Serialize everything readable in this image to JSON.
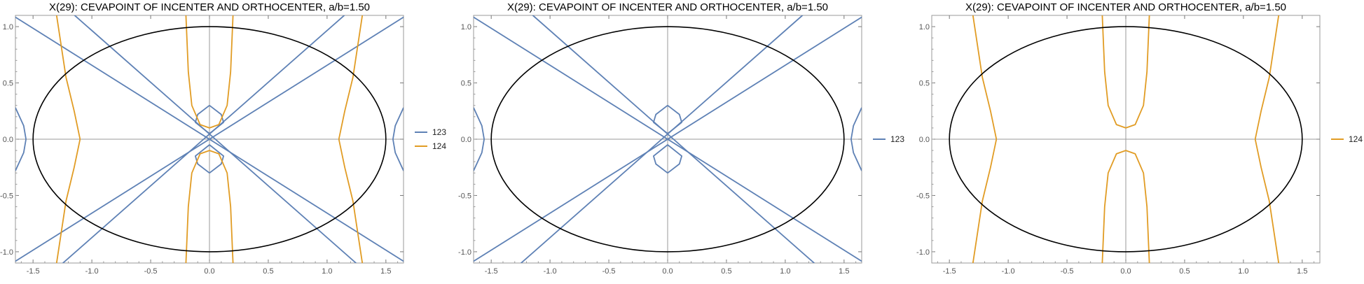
{
  "chart_data": [
    {
      "type": "line",
      "title": "X(29): CEVAPOINT OF INCENTER AND ORTHOCENTER, a/b=1.50",
      "xlim": [
        -1.65,
        1.65
      ],
      "ylim": [
        -1.1,
        1.1
      ],
      "xticks": [
        "-1.5",
        "-1.0",
        "-0.5",
        "0.0",
        "0.5",
        "1.0",
        "1.5"
      ],
      "yticks": [
        "-1.0",
        "-0.5",
        "0.0",
        "0.5",
        "1.0"
      ],
      "legend": {
        "placement": "right",
        "entries": [
          {
            "name": "123",
            "color": "#5E81B5"
          },
          {
            "name": "124",
            "color": "#E19C24"
          }
        ]
      },
      "series": [
        {
          "name": "123",
          "color": "#5E81B5",
          "curves": [
            {
              "x": [
                -1.75,
                1.75
              ],
              "y": [
                -1.15,
                1.15
              ]
            },
            {
              "x": [
                -1.75,
                1.75
              ],
              "y": [
                1.15,
                -1.15
              ]
            },
            {
              "x": [
                -1.3,
                1.2
              ],
              "y": [
                -1.15,
                1.15
              ]
            },
            {
              "x": [
                -1.2,
                1.3
              ],
              "y": [
                1.15,
                -1.15
              ]
            },
            {
              "x": [
                -1.65,
                -1.58,
                -1.56,
                -1.58,
                -1.65
              ],
              "y": [
                0.28,
                0.12,
                0.0,
                -0.12,
                -0.28
              ]
            },
            {
              "x": [
                1.65,
                1.58,
                1.56,
                1.58,
                1.65
              ],
              "y": [
                0.28,
                0.12,
                0.0,
                -0.12,
                -0.28
              ]
            },
            {
              "x": [
                0.0,
                0.1,
                0.12,
                0.0,
                -0.12,
                -0.1,
                0.0
              ],
              "y": [
                0.3,
                0.22,
                0.15,
                0.05,
                0.15,
                0.22,
                0.3
              ]
            },
            {
              "x": [
                0.0,
                0.1,
                0.12,
                0.0,
                -0.12,
                -0.1,
                0.0
              ],
              "y": [
                -0.3,
                -0.22,
                -0.15,
                -0.05,
                -0.15,
                -0.22,
                -0.3
              ]
            }
          ]
        },
        {
          "name": "124",
          "color": "#E19C24",
          "curves": [
            {
              "x": [
                -1.3,
                -1.22,
                -1.15,
                -1.1,
                -1.15,
                -1.22,
                -1.3
              ],
              "y": [
                1.1,
                0.55,
                0.25,
                0.0,
                -0.25,
                -0.55,
                -1.1
              ]
            },
            {
              "x": [
                1.3,
                1.22,
                1.15,
                1.1,
                1.15,
                1.22,
                1.3
              ],
              "y": [
                1.1,
                0.55,
                0.25,
                0.0,
                -0.25,
                -0.55,
                -1.1
              ]
            },
            {
              "x": [
                -0.2,
                -0.18,
                -0.15,
                -0.08,
                0.0,
                0.08,
                0.15,
                0.18,
                0.2
              ],
              "y": [
                1.1,
                0.6,
                0.3,
                0.13,
                0.1,
                0.13,
                0.3,
                0.6,
                1.1
              ]
            },
            {
              "x": [
                -0.2,
                -0.18,
                -0.15,
                -0.08,
                0.0,
                0.08,
                0.15,
                0.18,
                0.2
              ],
              "y": [
                -1.1,
                -0.6,
                -0.3,
                -0.13,
                -0.1,
                -0.13,
                -0.3,
                -0.6,
                -1.1
              ]
            }
          ]
        }
      ],
      "ellipse": {
        "cx": 0,
        "cy": 0,
        "rx": 1.5,
        "ry": 1.0,
        "color": "#000000"
      }
    },
    {
      "type": "line",
      "title": "X(29): CEVAPOINT OF INCENTER AND ORTHOCENTER, a/b=1.50",
      "xlim": [
        -1.65,
        1.65
      ],
      "ylim": [
        -1.1,
        1.1
      ],
      "xticks": [
        "-1.5",
        "-1.0",
        "-0.5",
        "0.0",
        "0.5",
        "1.0",
        "1.5"
      ],
      "yticks": [
        "-1.0",
        "-0.5",
        "0.0",
        "0.5",
        "1.0"
      ],
      "legend": {
        "placement": "right",
        "entries": [
          {
            "name": "123",
            "color": "#5E81B5"
          }
        ]
      },
      "series": [
        {
          "name": "123",
          "color": "#5E81B5",
          "curves": [
            {
              "x": [
                -1.75,
                1.75
              ],
              "y": [
                -1.15,
                1.15
              ]
            },
            {
              "x": [
                -1.75,
                1.75
              ],
              "y": [
                1.15,
                -1.15
              ]
            },
            {
              "x": [
                -1.3,
                1.2
              ],
              "y": [
                -1.15,
                1.15
              ]
            },
            {
              "x": [
                -1.2,
                1.3
              ],
              "y": [
                1.15,
                -1.15
              ]
            },
            {
              "x": [
                -1.65,
                -1.58,
                -1.56,
                -1.58,
                -1.65
              ],
              "y": [
                0.28,
                0.12,
                0.0,
                -0.12,
                -0.28
              ]
            },
            {
              "x": [
                1.65,
                1.58,
                1.56,
                1.58,
                1.65
              ],
              "y": [
                0.28,
                0.12,
                0.0,
                -0.12,
                -0.28
              ]
            },
            {
              "x": [
                0.0,
                0.1,
                0.12,
                0.0,
                -0.12,
                -0.1,
                0.0
              ],
              "y": [
                0.3,
                0.22,
                0.15,
                0.05,
                0.15,
                0.22,
                0.3
              ]
            },
            {
              "x": [
                0.0,
                0.1,
                0.12,
                0.0,
                -0.12,
                -0.1,
                0.0
              ],
              "y": [
                -0.3,
                -0.22,
                -0.15,
                -0.05,
                -0.15,
                -0.22,
                -0.3
              ]
            }
          ]
        }
      ],
      "ellipse": {
        "cx": 0,
        "cy": 0,
        "rx": 1.5,
        "ry": 1.0,
        "color": "#000000"
      }
    },
    {
      "type": "line",
      "title": "X(29): CEVAPOINT OF INCENTER AND ORTHOCENTER, a/b=1.50",
      "xlim": [
        -1.65,
        1.65
      ],
      "ylim": [
        -1.1,
        1.1
      ],
      "xticks": [
        "-1.5",
        "-1.0",
        "-0.5",
        "0.0",
        "0.5",
        "1.0",
        "1.5"
      ],
      "yticks": [
        "-1.0",
        "-0.5",
        "0.0",
        "0.5",
        "1.0"
      ],
      "legend": {
        "placement": "right",
        "entries": [
          {
            "name": "124",
            "color": "#E19C24"
          }
        ]
      },
      "series": [
        {
          "name": "124",
          "color": "#E19C24",
          "curves": [
            {
              "x": [
                -1.3,
                -1.22,
                -1.15,
                -1.1,
                -1.15,
                -1.22,
                -1.3
              ],
              "y": [
                1.1,
                0.55,
                0.25,
                0.0,
                -0.25,
                -0.55,
                -1.1
              ]
            },
            {
              "x": [
                1.3,
                1.22,
                1.15,
                1.1,
                1.15,
                1.22,
                1.3
              ],
              "y": [
                1.1,
                0.55,
                0.25,
                0.0,
                -0.25,
                -0.55,
                -1.1
              ]
            },
            {
              "x": [
                -0.2,
                -0.18,
                -0.15,
                -0.08,
                0.0,
                0.08,
                0.15,
                0.18,
                0.2
              ],
              "y": [
                1.1,
                0.6,
                0.3,
                0.13,
                0.1,
                0.13,
                0.3,
                0.6,
                1.1
              ]
            },
            {
              "x": [
                -0.2,
                -0.18,
                -0.15,
                -0.08,
                0.0,
                0.08,
                0.15,
                0.18,
                0.2
              ],
              "y": [
                -1.1,
                -0.6,
                -0.3,
                -0.13,
                -0.1,
                -0.13,
                -0.3,
                -0.6,
                -1.1
              ]
            }
          ]
        }
      ],
      "ellipse": {
        "cx": 0,
        "cy": 0,
        "rx": 1.5,
        "ry": 1.0,
        "color": "#000000"
      }
    }
  ]
}
